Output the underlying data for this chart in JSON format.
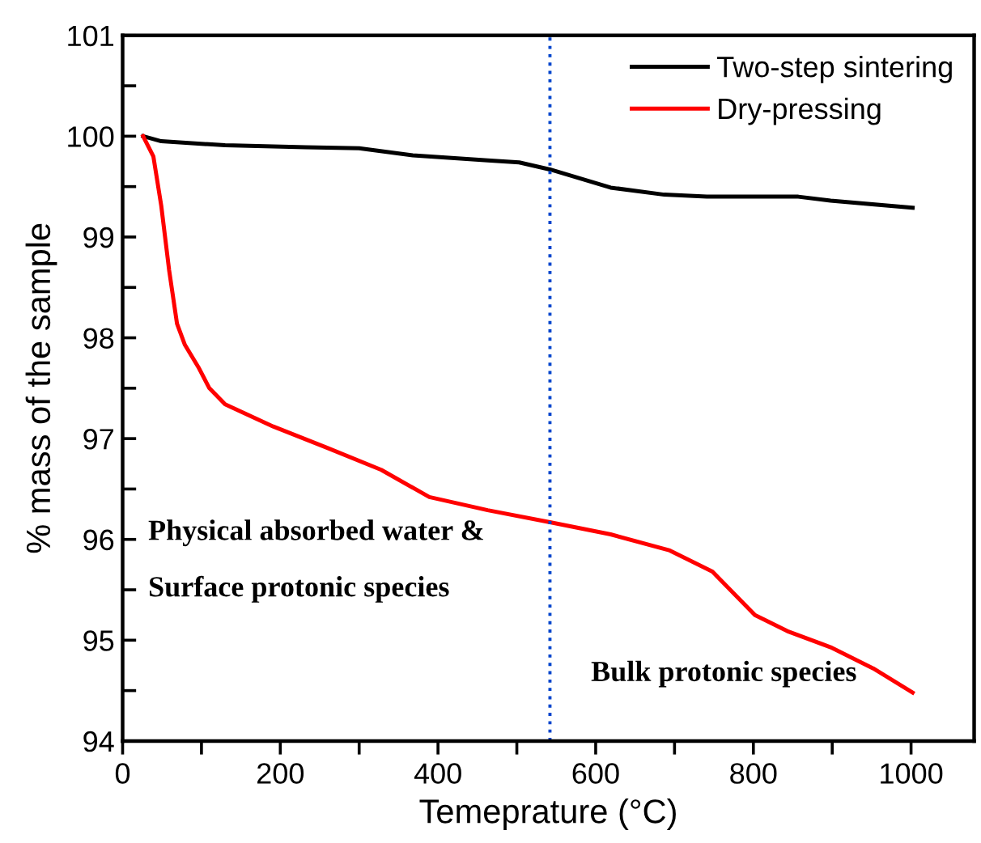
{
  "chart_data": {
    "type": "line",
    "xlabel": "Temeprature (°C)",
    "ylabel": "% mass of the sample",
    "xlim": [
      0,
      1080
    ],
    "ylim": [
      94,
      101
    ],
    "xticks": [
      0,
      {
        "value": 100,
        "label": null
      },
      200,
      {
        "value": 300,
        "label": null
      },
      400,
      {
        "value": 500,
        "label": null
      },
      600,
      {
        "value": 700,
        "label": null
      },
      800,
      {
        "value": 900,
        "label": null
      },
      1000
    ],
    "yticks": [
      94,
      {
        "value": 94.5,
        "label": null
      },
      95,
      {
        "value": 95.5,
        "label": null
      },
      96,
      {
        "value": 96.5,
        "label": null
      },
      97,
      {
        "value": 97.5,
        "label": null
      },
      98,
      {
        "value": 98.5,
        "label": null
      },
      99,
      {
        "value": 99.5,
        "label": null
      },
      100,
      {
        "value": 100.5,
        "label": null
      },
      101
    ],
    "grid": false,
    "legend": "top right",
    "marker": "none",
    "line_style": "solid",
    "series": [
      {
        "name": "Two-step sintering",
        "color": "#000000",
        "x": [
          26,
          49,
          130,
          232,
          300,
          368,
          463,
          503,
          542,
          619,
          687,
          741,
          857,
          898,
          1002
        ],
        "values": [
          100.0,
          99.95,
          99.91,
          99.89,
          99.88,
          99.81,
          99.76,
          99.74,
          99.67,
          99.49,
          99.42,
          99.4,
          99.4,
          99.36,
          99.29
        ]
      },
      {
        "name": "Dry-pressing",
        "color": "#ff0000",
        "x": [
          26,
          39,
          49,
          59,
          69,
          79,
          96,
          110,
          130,
          191,
          259,
          328,
          389,
          463,
          542,
          619,
          694,
          748,
          802,
          843,
          898,
          952,
          1002
        ],
        "values": [
          100.0,
          99.8,
          99.31,
          98.67,
          98.14,
          97.93,
          97.71,
          97.5,
          97.34,
          97.12,
          96.91,
          96.69,
          96.42,
          96.29,
          96.17,
          96.05,
          95.89,
          95.68,
          95.25,
          95.09,
          94.93,
          94.72,
          94.48
        ]
      }
    ],
    "ref_lines": [
      {
        "axis": "x",
        "value": 542,
        "color": "#0044cc",
        "line_style": "dotted"
      }
    ],
    "annotations": [
      "Physical absorbed water &",
      "Surface protonic species",
      "Bulk protonic species"
    ]
  }
}
